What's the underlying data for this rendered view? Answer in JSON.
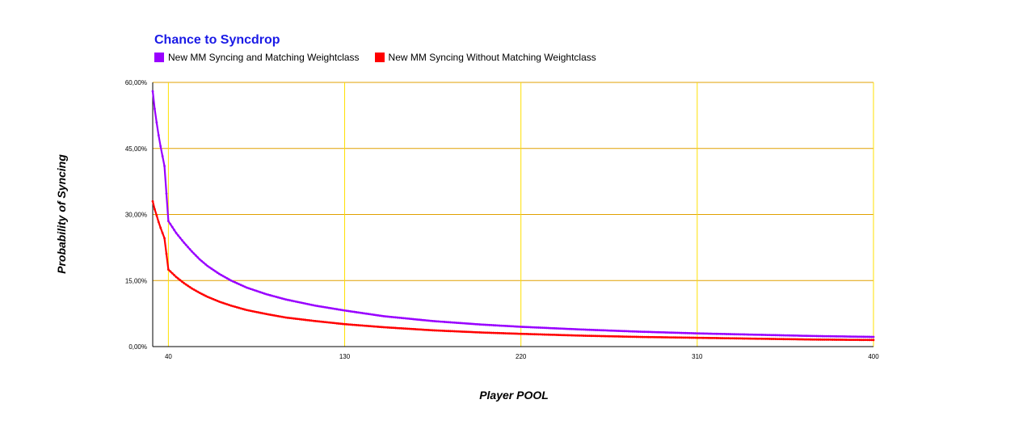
{
  "chart_data": {
    "type": "line",
    "title": "Chance to Syncdrop",
    "xlabel": "Player POOL",
    "ylabel": "Probability of Syncing",
    "xlim": [
      32,
      400
    ],
    "ylim": [
      0,
      60
    ],
    "x_ticks": [
      40,
      130,
      220,
      310,
      400
    ],
    "y_ticks": [
      0,
      15,
      30,
      45,
      60
    ],
    "y_tick_labels": [
      "0,00%",
      "15,00%",
      "30,00%",
      "45,00%",
      "60,00%"
    ],
    "grid": true,
    "legend_position": "top-left",
    "series": [
      {
        "name": "New MM Syncing and Matching Weightclass",
        "color": "#9900ff",
        "x": [
          32,
          33,
          34,
          35,
          36,
          38,
          40,
          44,
          48,
          52,
          56,
          60,
          66,
          72,
          80,
          90,
          100,
          115,
          130,
          150,
          175,
          200,
          220,
          250,
          280,
          310,
          340,
          370,
          400
        ],
        "y": [
          58.0,
          54.0,
          50.9,
          48.0,
          45.5,
          41.0,
          28.5,
          25.8,
          23.6,
          21.6,
          19.8,
          18.3,
          16.5,
          15.0,
          13.4,
          11.9,
          10.7,
          9.3,
          8.2,
          6.9,
          5.8,
          5.0,
          4.5,
          3.9,
          3.4,
          3.0,
          2.7,
          2.4,
          2.2
        ]
      },
      {
        "name": "New MM Syncing Without Matching Weightclass",
        "color": "#ff0000",
        "x": [
          32,
          33,
          34,
          35,
          36,
          38,
          40,
          44,
          48,
          52,
          56,
          60,
          66,
          72,
          80,
          90,
          100,
          115,
          130,
          150,
          175,
          200,
          220,
          250,
          280,
          310,
          340,
          370,
          400
        ],
        "y": [
          33.0,
          31.2,
          29.8,
          28.3,
          27.0,
          24.6,
          17.5,
          15.8,
          14.4,
          13.2,
          12.2,
          11.3,
          10.2,
          9.3,
          8.3,
          7.4,
          6.6,
          5.8,
          5.1,
          4.4,
          3.7,
          3.2,
          2.9,
          2.5,
          2.2,
          2.0,
          1.8,
          1.6,
          1.5
        ]
      }
    ]
  }
}
